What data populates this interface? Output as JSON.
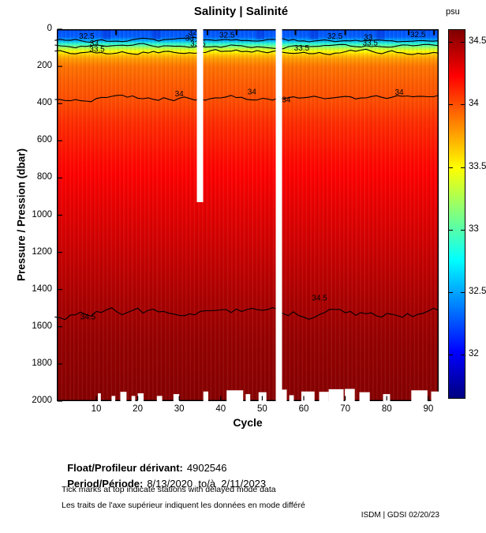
{
  "title": "Salinity | Salinité",
  "colorbar": {
    "unit": "psu",
    "tick_values": [
      34.5,
      34,
      33.5,
      33,
      32.5,
      32
    ],
    "min": 31.65,
    "max": 34.6
  },
  "axes": {
    "x": {
      "label": "Cycle",
      "tick_values": [
        10,
        20,
        30,
        40,
        50,
        60,
        70,
        80,
        90
      ],
      "min": 1,
      "max": 92
    },
    "y": {
      "label": "Pressure / Pression (dbar)",
      "tick_values": [
        0,
        200,
        400,
        600,
        800,
        1000,
        1200,
        1400,
        1600,
        1800,
        2000
      ],
      "min": 0,
      "max": 2000
    }
  },
  "chart_data": {
    "type": "heatmap",
    "title": "Salinity | Salinité",
    "xlabel": "Cycle",
    "ylabel": "Pressure / Pression (dbar)",
    "unit": "psu",
    "x_range": [
      1,
      92
    ],
    "y_range": [
      0,
      2000
    ],
    "value_range": [
      31.65,
      34.6
    ],
    "colormap": "jet",
    "legend_position": "right-colorbar",
    "grid": false,
    "mean_profile_depth_psu": [
      [
        0,
        32.25
      ],
      [
        50,
        32.3
      ],
      [
        70,
        32.7
      ],
      [
        90,
        33.1
      ],
      [
        120,
        33.5
      ],
      [
        150,
        33.75
      ],
      [
        200,
        33.9
      ],
      [
        300,
        33.97
      ],
      [
        370,
        34.0
      ],
      [
        500,
        34.1
      ],
      [
        700,
        34.2
      ],
      [
        900,
        34.28
      ],
      [
        1100,
        34.35
      ],
      [
        1300,
        34.42
      ],
      [
        1500,
        34.49
      ],
      [
        1700,
        34.54
      ],
      [
        2000,
        34.58
      ]
    ],
    "contours": [
      {
        "value": "32.5",
        "depth": 62,
        "amplitude": 16,
        "labels": [
          [
            7.7,
            52
          ],
          [
            34,
            30
          ],
          [
            41.5,
            45
          ],
          [
            67.5,
            52
          ],
          [
            87.5,
            42
          ]
        ]
      },
      {
        "value": "33",
        "depth": 88,
        "amplitude": 14,
        "labels": [
          [
            9.5,
            90
          ],
          [
            32.5,
            62
          ],
          [
            75.5,
            58
          ]
        ]
      },
      {
        "value": "33.5",
        "depth": 122,
        "amplitude": 18,
        "labels": [
          [
            10.2,
            122
          ],
          [
            34.5,
            92
          ],
          [
            59.5,
            115
          ],
          [
            76,
            88
          ]
        ]
      },
      {
        "value": "34",
        "depth": 368,
        "amplitude": 22,
        "labels": [
          [
            30,
            360
          ],
          [
            47.5,
            350
          ],
          [
            55.8,
            392
          ],
          [
            83,
            352
          ]
        ]
      },
      {
        "value": "34.5",
        "depth": 1528,
        "amplitude": 42,
        "labels": [
          [
            8,
            1560
          ],
          [
            63.8,
            1458
          ]
        ]
      }
    ],
    "missing_profiles": [
      {
        "cycle": 35,
        "from_depth": 0,
        "to_depth": 930
      },
      {
        "cycle": 54,
        "from_depth": 0,
        "to_depth": 2000
      }
    ],
    "shallow_bottom_segments": [
      [
        10.4,
        11.1,
        1958
      ],
      [
        13.7,
        14.6,
        1972
      ],
      [
        15.8,
        17.3,
        1950
      ],
      [
        18.5,
        19.4,
        1972
      ],
      [
        20.0,
        21.4,
        1958
      ],
      [
        24.6,
        25.9,
        1972
      ],
      [
        28.6,
        30.0,
        1962
      ],
      [
        35.8,
        37.0,
        1948
      ],
      [
        41.4,
        45.4,
        1942
      ],
      [
        46.0,
        47.1,
        1962
      ],
      [
        49.1,
        51.0,
        1952
      ],
      [
        53.6,
        55.9,
        1938
      ],
      [
        56.5,
        57.6,
        1968
      ],
      [
        59.4,
        62.6,
        1948
      ],
      [
        63.7,
        66.0,
        1950
      ],
      [
        66.0,
        69.6,
        1936
      ],
      [
        69.9,
        72.3,
        1934
      ],
      [
        73.4,
        75.9,
        1952
      ],
      [
        79.1,
        80.8,
        1962
      ],
      [
        85.9,
        89.8,
        1942
      ],
      [
        90.7,
        92.5,
        1948
      ]
    ],
    "surface_fresh_patches_cycles": [
      [
        12,
        13
      ],
      [
        24,
        25
      ],
      [
        49,
        50
      ],
      [
        62,
        63
      ],
      [
        78,
        79
      ]
    ],
    "delayed_mode_tick_cycles": [
      14.8,
      36.8,
      43.8,
      58,
      70,
      85.3,
      91.4
    ]
  },
  "footer": {
    "float_label": "Float/Profileur dérivant:",
    "float_value": "4902546",
    "period_label": "Period/Période:",
    "period_value": "8/13/2020  to/à  2/11/2023",
    "note_en": "Tick marks at top indicate stations with delayed mode data",
    "note_fr": "Les traits de l'axe supérieur indiquent les données en mode différé",
    "watermark": "ISDM | GDSI 02/20/23"
  }
}
